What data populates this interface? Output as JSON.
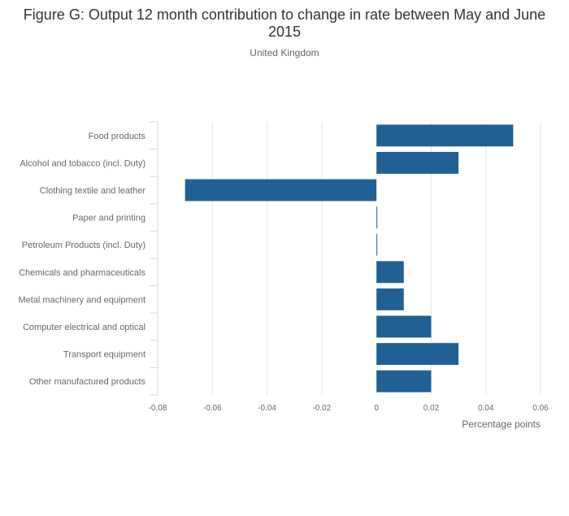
{
  "chart_data": {
    "type": "bar",
    "orientation": "horizontal",
    "title": "Figure G: Output 12 month contribution to change in rate between May and June 2015",
    "subtitle": "United Kingdom",
    "xlabel": "Percentage points",
    "ylabel": "",
    "xlim": [
      -0.08,
      0.06
    ],
    "xticks": [
      -0.08,
      -0.06,
      -0.04,
      -0.02,
      0,
      0.02,
      0.04,
      0.06
    ],
    "xtick_labels": [
      "-0.08",
      "-0.06",
      "-0.04",
      "-0.02",
      "0",
      "0.02",
      "0.04",
      "0.06"
    ],
    "grid": true,
    "bar_color": "#206095",
    "categories": [
      "Food products",
      "Alcohol and tobacco (incl. Duty)",
      "Clothing textile and leather",
      "Paper and printing",
      "Petroleum Products (incl. Duty)",
      "Chemicals and pharmaceuticals",
      "Metal machinery and equipment",
      "Computer electrical and optical",
      "Transport equipment",
      "Other manufactured products"
    ],
    "values": [
      0.05,
      0.03,
      -0.07,
      0,
      0,
      0.01,
      0.01,
      0.02,
      0.03,
      0.02
    ]
  }
}
